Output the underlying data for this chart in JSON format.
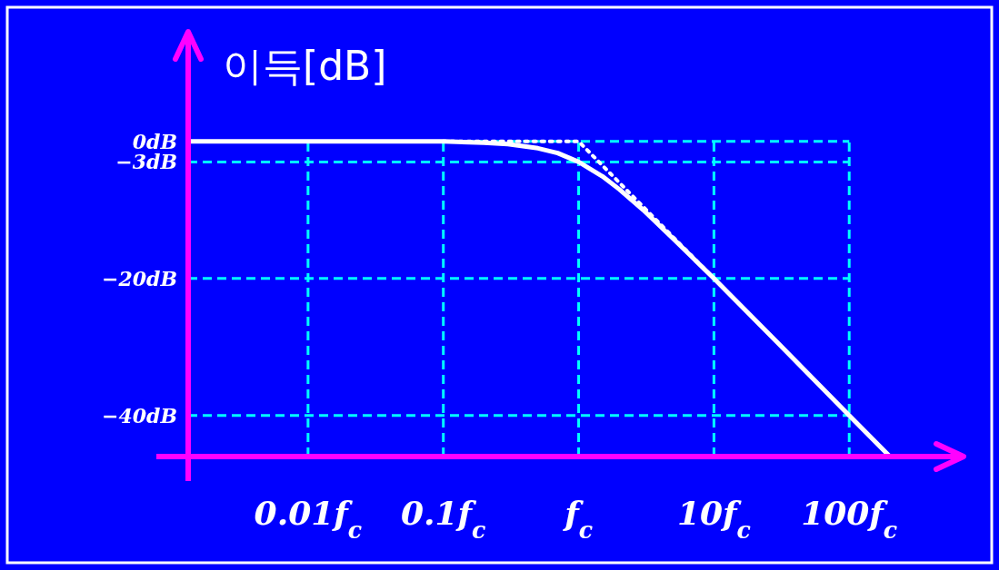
{
  "chart_data": {
    "type": "line",
    "ylabel": "이득[dB]",
    "log": "x",
    "xlim": [
      0.0013,
      700
    ],
    "ylim": [
      -46,
      16
    ],
    "xticks": [
      {
        "value": 0.01,
        "label": "0.01f$_{c}$"
      },
      {
        "value": 0.1,
        "label": "0.1f$_{c}$"
      },
      {
        "value": 1,
        "label": "f$_{c}$"
      },
      {
        "value": 10,
        "label": "10f$_{c}$"
      },
      {
        "value": 100,
        "label": "100f$_{c}$"
      }
    ],
    "yticks": [
      {
        "value": 0,
        "label": "0dB"
      },
      {
        "value": -3,
        "label": "−3dB"
      },
      {
        "value": -20,
        "label": "−20dB"
      },
      {
        "value": -40,
        "label": "−40dB"
      }
    ],
    "grid": true,
    "series": [
      {
        "color": "#ffffff",
        "line_style": "solid",
        "x": [
          0.0013,
          0.01,
          0.1,
          0.2,
          0.3,
          0.5,
          0.7,
          1,
          1.5,
          2,
          3,
          5,
          10,
          30,
          100,
          200
        ],
        "values": [
          0,
          0,
          0,
          -0.2,
          -0.4,
          -1,
          -1.7,
          -3,
          -5.1,
          -7,
          -10,
          -14.2,
          -20,
          -29.5,
          -40,
          -46
        ]
      },
      {
        "color": "#ffffff",
        "line_style": "dotted",
        "x": [
          0.1,
          1,
          10
        ],
        "values": [
          0,
          0,
          -20
        ]
      }
    ]
  }
}
